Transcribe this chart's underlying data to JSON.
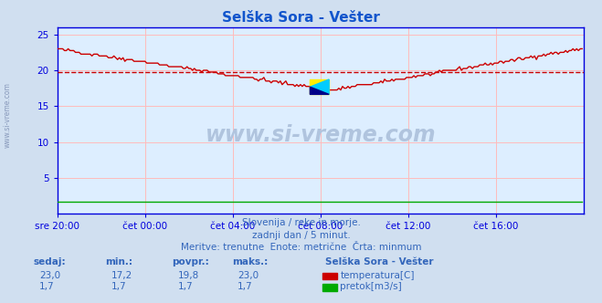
{
  "title": "Selška Sora - Vešter",
  "title_color": "#1155cc",
  "bg_color": "#d0dff0",
  "plot_bg_color": "#ddeeff",
  "grid_color": "#ffbbbb",
  "axis_color": "#0000dd",
  "text_color": "#3366bb",
  "xlim": [
    0,
    288
  ],
  "ylim": [
    0,
    26
  ],
  "yticks": [
    5,
    10,
    15,
    20,
    25
  ],
  "xtick_labels": [
    "sre 20:00",
    "čet 00:00",
    "čet 04:00",
    "čet 08:00",
    "čet 12:00",
    "čet 16:00"
  ],
  "xtick_positions": [
    0,
    48,
    96,
    144,
    192,
    240
  ],
  "temp_avg": 19.8,
  "temp_color": "#cc0000",
  "flow_color": "#00aa00",
  "watermark": "www.si-vreme.com",
  "watermark_color": "#b0c4de",
  "sidebar_text": "www.si-vreme.com",
  "subtitle1": "Slovenija / reke in morje.",
  "subtitle2": "zadnji dan / 5 minut.",
  "subtitle3": "Meritve: trenutne  Enote: metrične  Črta: minmum",
  "legend_title": "Selška Sora - Vešter",
  "label_temp": "temperatura[C]",
  "label_flow": "pretok[m3/s]",
  "col_headers": [
    "sedaj:",
    "min.:",
    "povpr.:",
    "maks.:"
  ],
  "temp_vals": [
    "23,0",
    "17,2",
    "19,8",
    "23,0"
  ],
  "flow_vals": [
    "1,7",
    "1,7",
    "1,7",
    "1,7"
  ]
}
